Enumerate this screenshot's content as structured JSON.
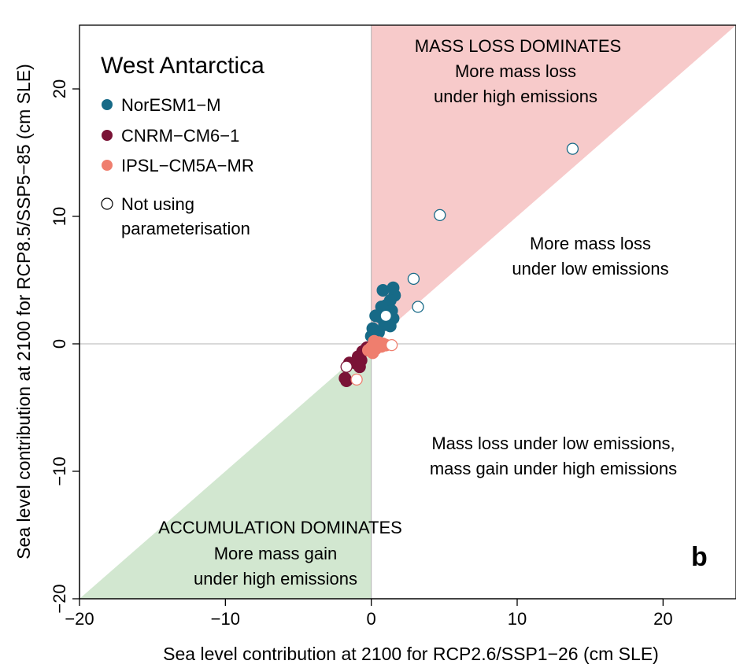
{
  "chart_data": {
    "type": "scatter",
    "title": "West Antarctica",
    "xlabel": "Sea level contribution at 2100 for RCP2.6/SSP1−26 (cm SLE)",
    "ylabel": "Sea level contribution at 2100 for RCP8.5/SSP5−85 (cm SLE)",
    "xlim": [
      -20,
      25
    ],
    "ylim": [
      -20,
      25
    ],
    "x_ticks": [
      -20,
      -10,
      0,
      10,
      20
    ],
    "y_ticks": [
      -20,
      -10,
      0,
      10,
      20
    ],
    "x_tick_labels": [
      "−20",
      "−10",
      "0",
      "10",
      "20"
    ],
    "y_tick_labels": [
      "−20",
      "−10",
      "0",
      "10",
      "20"
    ],
    "grid": false,
    "legend_position": "top-left",
    "panel_label": "b",
    "regions": [
      {
        "name": "mass-loss-dominates",
        "color": "#f7caca",
        "vertices": [
          [
            0,
            0
          ],
          [
            0,
            25
          ],
          [
            25,
            25
          ]
        ]
      },
      {
        "name": "accumulation-dominates",
        "color": "#d2e7d0",
        "vertices": [
          [
            0,
            0
          ],
          [
            0,
            -20
          ],
          [
            -20,
            -20
          ]
        ]
      }
    ],
    "annotations": {
      "mass_loss_dominates": "MASS LOSS DOMINATES",
      "more_loss_high_1": "More mass loss",
      "more_loss_high_2": "under high emissions",
      "more_loss_low_1": "More mass loss",
      "more_loss_low_2": "under low emissions",
      "loss_low_gain_high_1": "Mass loss under low emissions,",
      "loss_low_gain_high_2": "mass gain under high emissions",
      "accumulation_dominates": "ACCUMULATION DOMINATES",
      "more_gain_high_1": "More mass gain",
      "more_gain_high_2": "under high emissions"
    },
    "legend": {
      "title": "West Antarctica",
      "entries": [
        "NorESM1−M",
        "CNRM−CM6−1",
        "IPSL−CM5A−MR"
      ],
      "open_marker_line1": "Not using",
      "open_marker_line2": "parameterisation"
    },
    "series": [
      {
        "name": "NorESM1−M",
        "color": "#176a87",
        "points": [
          [
            0.8,
            4.2
          ],
          [
            1.5,
            4.4
          ],
          [
            1.6,
            3.8
          ],
          [
            1.3,
            3.4
          ],
          [
            1.0,
            3.0
          ],
          [
            0.7,
            2.9
          ],
          [
            1.4,
            2.6
          ],
          [
            1.1,
            2.2
          ],
          [
            0.6,
            2.1
          ],
          [
            1.5,
            2.0
          ],
          [
            0.3,
            2.2
          ],
          [
            1.2,
            1.8
          ],
          [
            0.9,
            1.5
          ],
          [
            1.3,
            1.4
          ],
          [
            0.1,
            1.2
          ],
          [
            0.5,
            0.9
          ],
          [
            0.2,
            0.8
          ],
          [
            0.0,
            0.6
          ]
        ],
        "open_points": [
          [
            2.9,
            5.1
          ],
          [
            3.2,
            2.9
          ],
          [
            4.7,
            10.1
          ],
          [
            13.8,
            15.3
          ],
          [
            1.0,
            2.2
          ]
        ]
      },
      {
        "name": "CNRM−CM6−1",
        "color": "#7a1336",
        "points": [
          [
            -0.6,
            -0.6
          ],
          [
            -0.9,
            -1.0
          ],
          [
            -0.7,
            -1.3
          ],
          [
            -1.1,
            -1.5
          ],
          [
            -0.8,
            -1.8
          ],
          [
            -1.5,
            -1.5
          ],
          [
            -1.8,
            -2.7
          ],
          [
            -1.7,
            -2.9
          ],
          [
            -0.3,
            -0.3
          ]
        ],
        "open_points": [
          [
            -1.7,
            -1.8
          ]
        ]
      },
      {
        "name": "IPSL−CM5A−MR",
        "color": "#ef7e6e",
        "points": [
          [
            0.2,
            0.2
          ],
          [
            0.4,
            -0.1
          ],
          [
            0.7,
            -0.2
          ],
          [
            1.0,
            -0.1
          ],
          [
            0.3,
            -0.4
          ],
          [
            0.0,
            -0.3
          ],
          [
            -0.2,
            -0.5
          ],
          [
            0.1,
            -0.7
          ],
          [
            0.5,
            0.1
          ],
          [
            0.8,
            0.0
          ]
        ],
        "open_points": [
          [
            1.4,
            -0.1
          ],
          [
            -1.0,
            -2.8
          ]
        ]
      }
    ]
  }
}
